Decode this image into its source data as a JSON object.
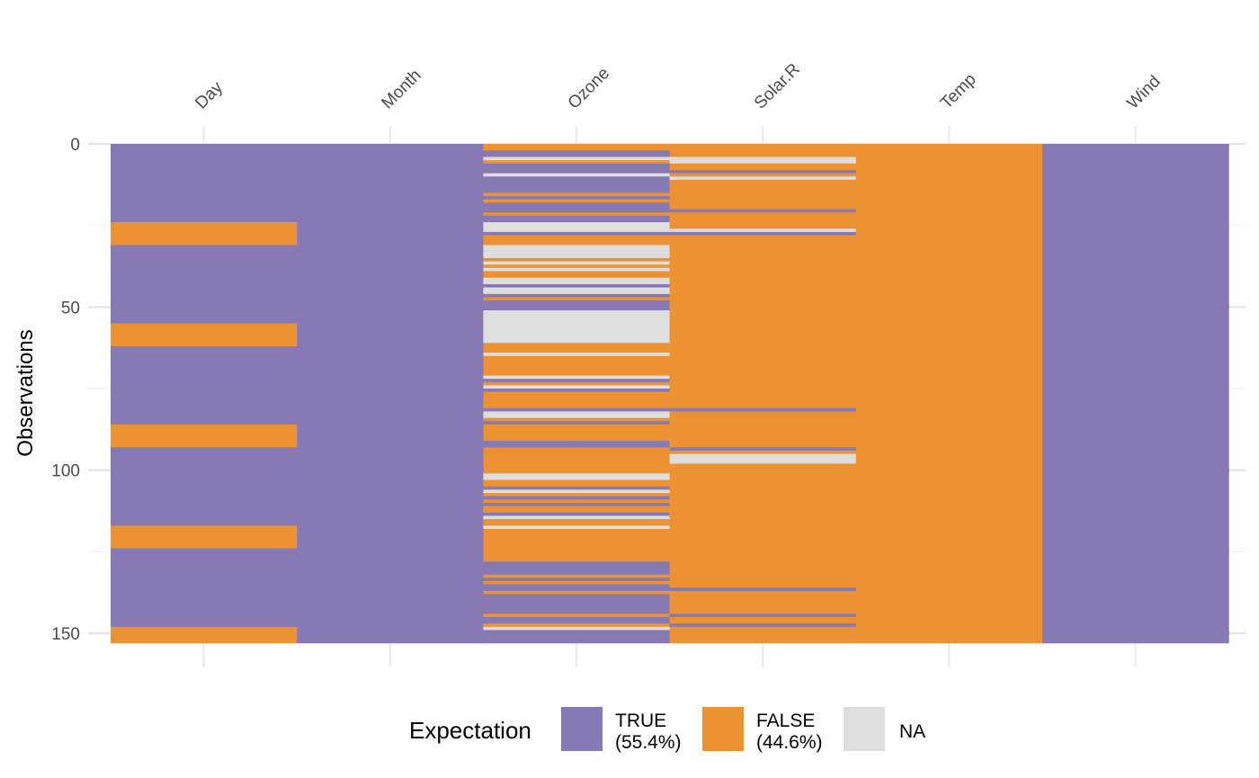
{
  "chart_data": {
    "type": "heatmap",
    "title": "",
    "xlabel": "",
    "ylabel": "Observations",
    "x_position": "top",
    "columns": [
      "Day",
      "Month",
      "Ozone",
      "Solar.R",
      "Temp",
      "Wind"
    ],
    "n_rows": 153,
    "ylim": [
      0,
      153
    ],
    "y_reversed": true,
    "y_ticks": [
      0,
      50,
      100,
      150
    ],
    "grid": true,
    "legend": {
      "title": "Expectation",
      "position": "bottom",
      "entries": [
        {
          "key": "TRUE",
          "label_line1": "TRUE",
          "label_line2": "(55.4%)",
          "percent": 55.4,
          "color": "#8779B4"
        },
        {
          "key": "FALSE",
          "label_line1": "FALSE",
          "label_line2": "(44.6%)",
          "percent": 44.6,
          "color": "#EC9232"
        },
        {
          "key": "NA",
          "label_line1": "NA",
          "label_line2": "",
          "color": "#DEDEDE"
        }
      ]
    },
    "cells_run_length": {
      "Day": [
        [
          1,
          24,
          "TRUE"
        ],
        [
          25,
          31,
          "FALSE"
        ],
        [
          32,
          55,
          "TRUE"
        ],
        [
          56,
          62,
          "FALSE"
        ],
        [
          63,
          86,
          "TRUE"
        ],
        [
          87,
          93,
          "FALSE"
        ],
        [
          94,
          117,
          "TRUE"
        ],
        [
          118,
          124,
          "FALSE"
        ],
        [
          125,
          148,
          "TRUE"
        ],
        [
          149,
          153,
          "FALSE"
        ]
      ],
      "Month": [
        [
          1,
          153,
          "TRUE"
        ]
      ],
      "Ozone": [
        [
          1,
          2,
          "FALSE"
        ],
        [
          3,
          4,
          "TRUE"
        ],
        [
          5,
          5,
          "NA"
        ],
        [
          6,
          6,
          "FALSE"
        ],
        [
          7,
          9,
          "TRUE"
        ],
        [
          10,
          10,
          "NA"
        ],
        [
          11,
          15,
          "TRUE"
        ],
        [
          16,
          16,
          "FALSE"
        ],
        [
          17,
          17,
          "TRUE"
        ],
        [
          18,
          18,
          "FALSE"
        ],
        [
          19,
          21,
          "TRUE"
        ],
        [
          22,
          22,
          "FALSE"
        ],
        [
          23,
          24,
          "TRUE"
        ],
        [
          25,
          27,
          "NA"
        ],
        [
          28,
          28,
          "TRUE"
        ],
        [
          29,
          31,
          "FALSE"
        ],
        [
          32,
          35,
          "NA"
        ],
        [
          36,
          36,
          "FALSE"
        ],
        [
          37,
          37,
          "NA"
        ],
        [
          38,
          38,
          "FALSE"
        ],
        [
          39,
          39,
          "NA"
        ],
        [
          40,
          41,
          "FALSE"
        ],
        [
          42,
          43,
          "NA"
        ],
        [
          44,
          44,
          "TRUE"
        ],
        [
          45,
          46,
          "NA"
        ],
        [
          47,
          47,
          "TRUE"
        ],
        [
          48,
          48,
          "FALSE"
        ],
        [
          49,
          51,
          "TRUE"
        ],
        [
          52,
          61,
          "NA"
        ],
        [
          62,
          64,
          "FALSE"
        ],
        [
          65,
          65,
          "NA"
        ],
        [
          66,
          71,
          "FALSE"
        ],
        [
          72,
          72,
          "NA"
        ],
        [
          73,
          73,
          "TRUE"
        ],
        [
          74,
          74,
          "FALSE"
        ],
        [
          75,
          75,
          "NA"
        ],
        [
          76,
          76,
          "TRUE"
        ],
        [
          77,
          81,
          "FALSE"
        ],
        [
          82,
          82,
          "TRUE"
        ],
        [
          83,
          84,
          "NA"
        ],
        [
          85,
          85,
          "FALSE"
        ],
        [
          86,
          86,
          "TRUE"
        ],
        [
          87,
          91,
          "FALSE"
        ],
        [
          92,
          93,
          "TRUE"
        ],
        [
          94,
          99,
          "FALSE"
        ],
        [
          100,
          101,
          "FALSE"
        ],
        [
          102,
          103,
          "NA"
        ],
        [
          104,
          105,
          "FALSE"
        ],
        [
          106,
          106,
          "TRUE"
        ],
        [
          107,
          107,
          "NA"
        ],
        [
          108,
          108,
          "FALSE"
        ],
        [
          109,
          109,
          "TRUE"
        ],
        [
          110,
          110,
          "FALSE"
        ],
        [
          111,
          111,
          "TRUE"
        ],
        [
          112,
          113,
          "FALSE"
        ],
        [
          114,
          114,
          "TRUE"
        ],
        [
          115,
          115,
          "NA"
        ],
        [
          116,
          117,
          "FALSE"
        ],
        [
          118,
          118,
          "NA"
        ],
        [
          119,
          128,
          "FALSE"
        ],
        [
          129,
          132,
          "TRUE"
        ],
        [
          133,
          133,
          "FALSE"
        ],
        [
          134,
          134,
          "TRUE"
        ],
        [
          135,
          135,
          "FALSE"
        ],
        [
          136,
          137,
          "TRUE"
        ],
        [
          138,
          138,
          "FALSE"
        ],
        [
          139,
          144,
          "TRUE"
        ],
        [
          145,
          145,
          "FALSE"
        ],
        [
          146,
          147,
          "TRUE"
        ],
        [
          148,
          148,
          "FALSE"
        ],
        [
          149,
          149,
          "NA"
        ],
        [
          150,
          153,
          "TRUE"
        ]
      ],
      "Solar.R": [
        [
          1,
          4,
          "FALSE"
        ],
        [
          5,
          6,
          "NA"
        ],
        [
          7,
          8,
          "FALSE"
        ],
        [
          9,
          9,
          "TRUE"
        ],
        [
          10,
          10,
          "FALSE"
        ],
        [
          11,
          11,
          "NA"
        ],
        [
          12,
          20,
          "FALSE"
        ],
        [
          21,
          21,
          "TRUE"
        ],
        [
          22,
          26,
          "FALSE"
        ],
        [
          27,
          27,
          "NA"
        ],
        [
          28,
          28,
          "TRUE"
        ],
        [
          29,
          81,
          "FALSE"
        ],
        [
          82,
          82,
          "TRUE"
        ],
        [
          83,
          93,
          "FALSE"
        ],
        [
          94,
          94,
          "TRUE"
        ],
        [
          95,
          95,
          "FALSE"
        ],
        [
          96,
          98,
          "NA"
        ],
        [
          99,
          136,
          "FALSE"
        ],
        [
          137,
          137,
          "TRUE"
        ],
        [
          138,
          144,
          "FALSE"
        ],
        [
          145,
          145,
          "TRUE"
        ],
        [
          146,
          147,
          "FALSE"
        ],
        [
          148,
          148,
          "TRUE"
        ],
        [
          149,
          153,
          "FALSE"
        ]
      ],
      "Temp": [
        [
          1,
          153,
          "FALSE"
        ]
      ],
      "Wind": [
        [
          1,
          153,
          "TRUE"
        ]
      ]
    }
  }
}
